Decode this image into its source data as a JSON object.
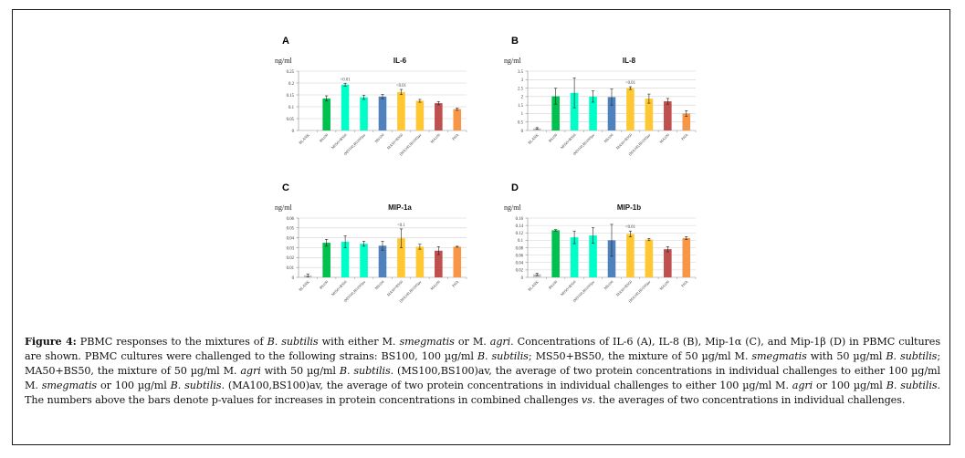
{
  "figure": {
    "caption_label": "Figure 4:",
    "caption_segments": [
      {
        "t": " PBMC responses to the mixtures of ",
        "i": false
      },
      {
        "t": "B. subtilis",
        "i": true
      },
      {
        "t": " with either M. ",
        "i": false
      },
      {
        "t": "smegmatis",
        "i": true
      },
      {
        "t": " or M. ",
        "i": false
      },
      {
        "t": "agri",
        "i": true
      },
      {
        "t": ". Concentrations of IL-6 (A), IL-8 (B), Mip-1α (C), and Mip-1β (D) in PBMC cultures are shown. PBMC cultures were challenged to the following strains: BS100, 100 µg/ml ",
        "i": false
      },
      {
        "t": "B. subtilis",
        "i": true
      },
      {
        "t": "; MS50+BS50, the mixture of 50 µg/ml M. ",
        "i": false
      },
      {
        "t": "smegmatis",
        "i": true
      },
      {
        "t": " with 50 µg/ml ",
        "i": false
      },
      {
        "t": "B. subtilis",
        "i": true
      },
      {
        "t": "; MA50+BS50, the mixture of 50 µg/ml M. ",
        "i": false
      },
      {
        "t": "agri",
        "i": true
      },
      {
        "t": " with 50 µg/ml ",
        "i": false
      },
      {
        "t": "B. subtilis",
        "i": true
      },
      {
        "t": ". (MS100,BS100)av, the average of two protein concentrations in individual challenges to either 100 µg/ml M. ",
        "i": false
      },
      {
        "t": "smegmatis",
        "i": true
      },
      {
        "t": " or 100 µg/ml ",
        "i": false
      },
      {
        "t": "B. subtilis",
        "i": true
      },
      {
        "t": ". (MA100,BS100)av, the average of two protein concentrations in individual challenges to either 100 µg/ml M. ",
        "i": false
      },
      {
        "t": "agri",
        "i": true
      },
      {
        "t": " or 100 µg/ml ",
        "i": false
      },
      {
        "t": "B. subtilis",
        "i": true
      },
      {
        "t": ". The numbers above the bars denote p-values for increases in protein concentrations in combined challenges ",
        "i": false
      },
      {
        "t": "vs",
        "i": true
      },
      {
        "t": ". the averages of two concentrations in individual challenges.",
        "i": false
      }
    ]
  },
  "colors": {
    "BLANK": "#bfbfbf",
    "BS100": "#00c050",
    "MS50+BS50": "#00ffc8",
    "(MS100,BS100)av": "#00ffc8",
    "MS100": "#4f81bd",
    "MA50+BS50": "#ffc832",
    "(MA100,BS100)av": "#ffc832",
    "MA100": "#c0504d",
    "PHA": "#f79646"
  },
  "chart_data": [
    {
      "type": "bar",
      "panel": "A",
      "title": "IL-6",
      "ylabel": "ng/ml",
      "xlabel": "",
      "categories": [
        "BLANK",
        "BS100",
        "MS50+BS50",
        "(MS100,BS100)av",
        "MS100",
        "MA50+BS50",
        "(MA100,BS100)av",
        "MA100",
        "PHA"
      ],
      "values": [
        0,
        0.135,
        0.193,
        0.14,
        0.143,
        0.162,
        0.125,
        0.115,
        0.09
      ],
      "errors": [
        0,
        0.011,
        0.006,
        0.009,
        0.009,
        0.011,
        0.006,
        0.007,
        0.005
      ],
      "annotations": [
        null,
        null,
        "<0.01",
        null,
        null,
        "<0.01",
        null,
        null,
        null
      ],
      "ylim": [
        0,
        0.25
      ],
      "yticks": [
        "0",
        "0.05",
        "0.1",
        "0.15",
        "0.2",
        "0.25"
      ],
      "ytick_values": [
        0,
        0.05,
        0.1,
        0.15,
        0.2,
        0.25
      ],
      "grid": true
    },
    {
      "type": "bar",
      "panel": "B",
      "title": "IL-8",
      "ylabel": "ng/ml",
      "xlabel": "",
      "categories": [
        "BLANK",
        "BS100",
        "MS50+BS50",
        "(MS100,BS100)av",
        "MS100",
        "MA50+BS50",
        "(MA100,BS100)av",
        "MA100",
        "PHA"
      ],
      "values": [
        0.12,
        2.02,
        2.22,
        2.0,
        1.97,
        2.5,
        1.88,
        1.72,
        1.0
      ],
      "errors": [
        0.05,
        0.47,
        0.88,
        0.33,
        0.47,
        0.08,
        0.27,
        0.17,
        0.17
      ],
      "annotations": [
        null,
        null,
        null,
        null,
        null,
        "<0.01",
        null,
        null,
        null
      ],
      "ylim": [
        0,
        3.5
      ],
      "yticks": [
        "0",
        "0.5",
        "1",
        "1.5",
        "2",
        "2.5",
        "3",
        "3.5"
      ],
      "ytick_values": [
        0,
        0.5,
        1,
        1.5,
        2,
        2.5,
        3,
        3.5
      ],
      "grid": true
    },
    {
      "type": "bar",
      "panel": "C",
      "title": "MIP-1a",
      "ylabel": "ng/ml",
      "xlabel": "",
      "categories": [
        "BLANK",
        "BS100",
        "MS50+BS50",
        "(MS100,BS100)av",
        "MS100",
        "MA50+BS50",
        "(MA100,BS100)av",
        "MA100",
        "PHA"
      ],
      "values": [
        0.002,
        0.035,
        0.036,
        0.034,
        0.032,
        0.0395,
        0.031,
        0.027,
        0.031
      ],
      "errors": [
        0.0015,
        0.0035,
        0.006,
        0.0025,
        0.0045,
        0.0095,
        0.0025,
        0.004,
        0.0005
      ],
      "annotations": [
        null,
        null,
        null,
        null,
        null,
        "<0.1",
        null,
        null,
        null
      ],
      "ylim": [
        0,
        0.06
      ],
      "yticks": [
        "0",
        "0.01",
        "0.02",
        "0.03",
        "0.04",
        "0.05",
        "0.06"
      ],
      "ytick_values": [
        0,
        0.01,
        0.02,
        0.03,
        0.04,
        0.05,
        0.06
      ],
      "grid": true
    },
    {
      "type": "bar",
      "panel": "D",
      "title": "MIP-1b",
      "ylabel": "ng/ml",
      "xlabel": "",
      "categories": [
        "BLANK",
        "BS100",
        "MS50+BS50",
        "(MS100,BS100)av",
        "MS100",
        "MA50+BS50",
        "(MA100,BS100)av",
        "MA100",
        "PHA"
      ],
      "values": [
        0.008,
        0.127,
        0.108,
        0.113,
        0.1,
        0.117,
        0.102,
        0.076,
        0.106
      ],
      "errors": [
        0.003,
        0.002,
        0.017,
        0.021,
        0.043,
        0.008,
        0.003,
        0.007,
        0.004
      ],
      "annotations": [
        null,
        null,
        null,
        null,
        null,
        "<0.01",
        null,
        null,
        null
      ],
      "ylim": [
        0,
        0.16
      ],
      "yticks": [
        "0",
        "0.02",
        "0.04",
        "0.06",
        "0.08",
        "0.1",
        "0.12",
        "0.14",
        "0.16"
      ],
      "ytick_values": [
        0,
        0.02,
        0.04,
        0.06,
        0.08,
        0.1,
        0.12,
        0.14,
        0.16
      ],
      "grid": true
    }
  ]
}
